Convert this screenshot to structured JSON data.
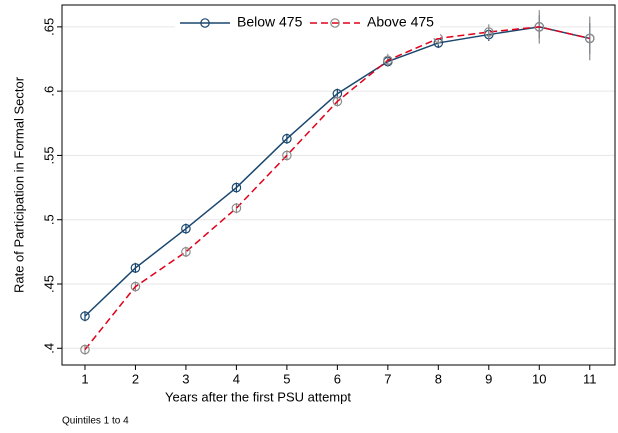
{
  "chart_data": {
    "type": "line",
    "x": [
      1,
      2,
      3,
      4,
      5,
      6,
      7,
      8,
      9,
      10,
      11
    ],
    "xlim": [
      0.545,
      11.5
    ],
    "xticks": [
      1,
      2,
      3,
      4,
      5,
      6,
      7,
      8,
      9,
      10,
      11
    ],
    "ylim": [
      0.387,
      0.667
    ],
    "yticks": [
      {
        "value": 0.4,
        "label": ".4"
      },
      {
        "value": 0.45,
        "label": ".45"
      },
      {
        "value": 0.5,
        "label": ".5"
      },
      {
        "value": 0.55,
        "label": ".55"
      },
      {
        "value": 0.6,
        "label": ".6"
      },
      {
        "value": 0.65,
        "label": ".65"
      }
    ],
    "grid": true,
    "x_label": "Years after the first PSU attempt",
    "y_label": "Rate of Participation in Formal Sector",
    "note": "Quintiles 1 to 4",
    "legend_position": "top",
    "series": [
      {
        "name": "Below 475",
        "color": "#1a476f",
        "marker_color": "#1a476f",
        "dash": false,
        "values": [
          0.425,
          0.4625,
          0.493,
          0.525,
          0.563,
          0.598,
          0.623,
          0.6375,
          0.644,
          0.65,
          0.641
        ],
        "errors": [
          0.004,
          0.004,
          0.004,
          0.004,
          0.004,
          0.004,
          0.004,
          0.004,
          0.005,
          0.009,
          0.012
        ]
      },
      {
        "name": "Above 475",
        "color": "#e0001a",
        "marker_color": "#8c8c8c",
        "dash": true,
        "values": [
          0.399,
          0.448,
          0.475,
          0.509,
          0.55,
          0.592,
          0.624,
          0.641,
          0.646,
          0.65,
          0.641
        ],
        "errors": [
          0.004,
          0.004,
          0.004,
          0.004,
          0.004,
          0.004,
          0.005,
          0.005,
          0.006,
          0.013,
          0.017
        ]
      }
    ]
  }
}
